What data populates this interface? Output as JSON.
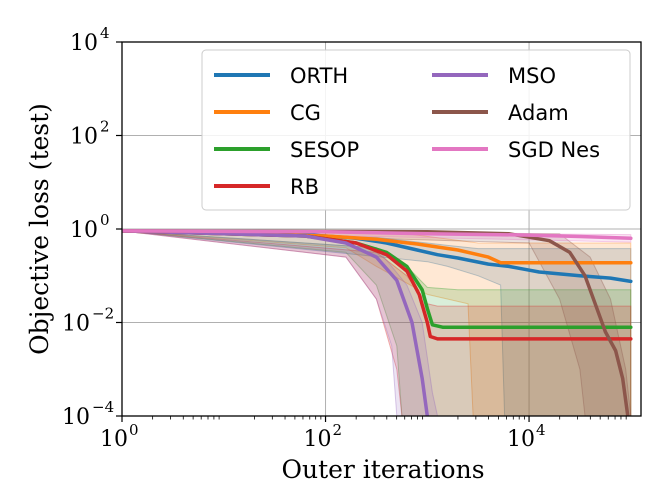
{
  "chart_data": {
    "type": "line",
    "title": "",
    "xlabel": "Outer iterations",
    "ylabel": "Objective loss (test)",
    "xscale": "log",
    "yscale": "log",
    "xlim_exp": [
      0,
      5.1
    ],
    "ylim_exp": [
      -4,
      4
    ],
    "xticks": [
      {
        "base": "10",
        "exp": "0",
        "v": 0
      },
      {
        "base": "10",
        "exp": "2",
        "v": 2
      },
      {
        "base": "10",
        "exp": "4",
        "v": 4
      }
    ],
    "yticks": [
      {
        "base": "10",
        "exp": "−4",
        "v": -4
      },
      {
        "base": "10",
        "exp": "−2",
        "v": -2
      },
      {
        "base": "10",
        "exp": "0",
        "v": 0
      },
      {
        "base": "10",
        "exp": "2",
        "v": 2
      },
      {
        "base": "10",
        "exp": "4",
        "v": 4
      }
    ],
    "grid": true,
    "legend": {
      "position": "top-right",
      "columns": 2
    },
    "series": [
      {
        "name": "ORTH",
        "color": "#1f77b4",
        "line": [
          [
            0,
            -0.04
          ],
          [
            1,
            -0.06
          ],
          [
            1.8,
            -0.12
          ],
          [
            2.3,
            -0.2
          ],
          [
            2.6,
            -0.3
          ],
          [
            2.9,
            -0.45
          ],
          [
            3.1,
            -0.55
          ],
          [
            3.3,
            -0.62
          ],
          [
            3.6,
            -0.75
          ],
          [
            3.8,
            -0.8
          ],
          [
            3.95,
            -0.86
          ],
          [
            4.1,
            -0.92
          ],
          [
            4.5,
            -1.0
          ],
          [
            4.8,
            -1.05
          ],
          [
            5.0,
            -1.12
          ]
        ],
        "band_upper": [
          [
            0,
            -0.04
          ],
          [
            2.5,
            -0.18
          ],
          [
            3.0,
            -0.3
          ],
          [
            3.2,
            -0.35
          ],
          [
            3.5,
            -0.42
          ],
          [
            5.0,
            -0.42
          ]
        ],
        "band_lower": [
          [
            0,
            -0.04
          ],
          [
            3.0,
            -0.7
          ],
          [
            3.2,
            -0.8
          ],
          [
            3.5,
            -1.0
          ],
          [
            3.72,
            -1.2
          ],
          [
            3.76,
            -4.0
          ],
          [
            5.0,
            -4.0
          ]
        ]
      },
      {
        "name": "CG",
        "color": "#ff7f0e",
        "line": [
          [
            0,
            -0.04
          ],
          [
            2.0,
            -0.15
          ],
          [
            2.5,
            -0.22
          ],
          [
            2.9,
            -0.32
          ],
          [
            3.3,
            -0.45
          ],
          [
            3.6,
            -0.6
          ],
          [
            3.72,
            -0.72
          ],
          [
            5.0,
            -0.72
          ]
        ],
        "band_upper": [
          [
            0,
            -0.04
          ],
          [
            2.8,
            -0.1
          ],
          [
            3.5,
            -0.3
          ],
          [
            5.0,
            -0.3
          ]
        ],
        "band_lower": [
          [
            0,
            -0.04
          ],
          [
            2.2,
            -0.4
          ],
          [
            2.5,
            -0.8
          ],
          [
            3.0,
            -1.4
          ],
          [
            3.4,
            -1.6
          ],
          [
            3.45,
            -4.0
          ],
          [
            5.0,
            -4.0
          ]
        ]
      },
      {
        "name": "SESOP",
        "color": "#2ca02c",
        "line": [
          [
            0,
            -0.04
          ],
          [
            1.8,
            -0.15
          ],
          [
            2.3,
            -0.3
          ],
          [
            2.6,
            -0.5
          ],
          [
            2.8,
            -0.8
          ],
          [
            2.95,
            -1.3
          ],
          [
            3.0,
            -1.7
          ],
          [
            3.05,
            -2.05
          ],
          [
            3.15,
            -2.1
          ],
          [
            5.0,
            -2.1
          ]
        ],
        "band_upper": [
          [
            0,
            -0.04
          ],
          [
            2.5,
            -0.4
          ],
          [
            2.8,
            -0.8
          ],
          [
            3.0,
            -1.25
          ],
          [
            3.3,
            -1.3
          ],
          [
            5.0,
            -1.3
          ]
        ],
        "band_lower": [
          [
            0,
            -0.04
          ],
          [
            2.2,
            -0.5
          ],
          [
            2.5,
            -1.2
          ],
          [
            2.7,
            -2.5
          ],
          [
            2.75,
            -4.0
          ],
          [
            5.0,
            -4.0
          ]
        ]
      },
      {
        "name": "RB",
        "color": "#d62728",
        "line": [
          [
            0,
            -0.04
          ],
          [
            1.8,
            -0.15
          ],
          [
            2.3,
            -0.3
          ],
          [
            2.6,
            -0.55
          ],
          [
            2.8,
            -0.9
          ],
          [
            2.92,
            -1.4
          ],
          [
            3.0,
            -2.0
          ],
          [
            3.03,
            -2.3
          ],
          [
            3.1,
            -2.35
          ],
          [
            5.0,
            -2.35
          ]
        ],
        "band_upper": [
          [
            0,
            -0.04
          ],
          [
            2.5,
            -0.5
          ],
          [
            2.8,
            -1.0
          ],
          [
            3.0,
            -1.6
          ],
          [
            3.1,
            -1.65
          ],
          [
            5.0,
            -1.65
          ]
        ],
        "band_lower": [
          [
            0,
            -0.04
          ],
          [
            2.2,
            -0.6
          ],
          [
            2.5,
            -1.5
          ],
          [
            2.7,
            -3.0
          ],
          [
            2.75,
            -4.0
          ],
          [
            5.0,
            -4.0
          ]
        ]
      },
      {
        "name": "MSO",
        "color": "#9467bd",
        "line": [
          [
            0,
            -0.04
          ],
          [
            1.8,
            -0.15
          ],
          [
            2.2,
            -0.3
          ],
          [
            2.5,
            -0.6
          ],
          [
            2.7,
            -1.1
          ],
          [
            2.85,
            -2.0
          ],
          [
            2.9,
            -2.6
          ],
          [
            2.95,
            -3.2
          ],
          [
            3.0,
            -4.0
          ]
        ],
        "band_upper": [
          [
            0,
            -0.04
          ],
          [
            2.5,
            -0.4
          ],
          [
            2.8,
            -1.2
          ],
          [
            2.95,
            -2.0
          ],
          [
            3.05,
            -3.5
          ],
          [
            3.1,
            -4.0
          ]
        ],
        "band_lower": [
          [
            0,
            -0.04
          ],
          [
            2.2,
            -0.6
          ],
          [
            2.5,
            -1.5
          ],
          [
            2.65,
            -2.5
          ],
          [
            2.7,
            -4.0
          ]
        ]
      },
      {
        "name": "Adam",
        "color": "#8c564b",
        "line": [
          [
            0,
            -0.04
          ],
          [
            3.0,
            -0.06
          ],
          [
            3.8,
            -0.1
          ],
          [
            4.2,
            -0.25
          ],
          [
            4.4,
            -0.5
          ],
          [
            4.55,
            -1.0
          ],
          [
            4.65,
            -1.6
          ],
          [
            4.75,
            -2.2
          ],
          [
            4.85,
            -2.6
          ],
          [
            4.92,
            -3.2
          ],
          [
            4.97,
            -4.0
          ]
        ],
        "band_upper": [
          [
            0,
            -0.04
          ],
          [
            4.3,
            -0.1
          ],
          [
            4.6,
            -0.6
          ],
          [
            4.8,
            -1.5
          ],
          [
            4.95,
            -3.0
          ],
          [
            5.0,
            -4.0
          ]
        ],
        "band_lower": [
          [
            0,
            -0.04
          ],
          [
            4.0,
            -0.3
          ],
          [
            4.3,
            -1.5
          ],
          [
            4.5,
            -3.0
          ],
          [
            4.55,
            -4.0
          ]
        ]
      },
      {
        "name": "SGD Nes",
        "color": "#e377c2",
        "line": [
          [
            0,
            -0.04
          ],
          [
            2.0,
            -0.06
          ],
          [
            3.0,
            -0.1
          ],
          [
            4.0,
            -0.13
          ],
          [
            4.5,
            -0.16
          ],
          [
            5.0,
            -0.2
          ]
        ],
        "band_upper": [
          [
            0,
            -0.04
          ],
          [
            5.0,
            -0.12
          ]
        ],
        "band_lower": [
          [
            0,
            -0.04
          ],
          [
            5.0,
            -0.28
          ]
        ]
      }
    ]
  }
}
